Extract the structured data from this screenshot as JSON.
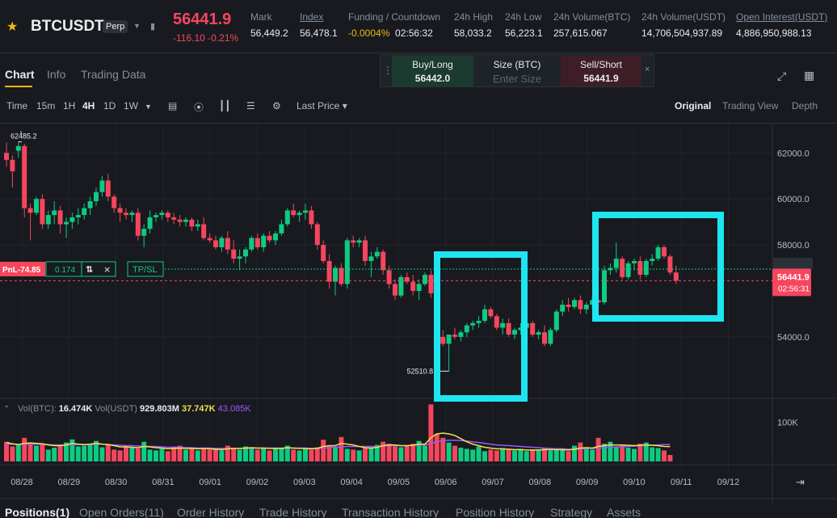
{
  "header": {
    "star_icon": "star-icon",
    "symbol": "BTCUSDT",
    "contract_badge": "Perp",
    "last_price": "56441.9",
    "change": "-116.10",
    "change_pct": "-0.21%",
    "stats": [
      {
        "label": "Mark",
        "value": "56,449.2",
        "underline": false
      },
      {
        "label": "Index",
        "value": "56,478.1",
        "underline": true
      },
      {
        "label": "Funding / Countdown",
        "value_neg": "-0.0004%",
        "value": "02:56:32",
        "underline": false
      },
      {
        "label": "24h High",
        "value": "58,033.2",
        "underline": false
      },
      {
        "label": "24h Low",
        "value": "56,223.1",
        "underline": false
      },
      {
        "label": "24h Volume(BTC)",
        "value": "257,615.067",
        "underline": false
      },
      {
        "label": "24h Volume(USDT)",
        "value": "14,706,504,937.89",
        "underline": false
      },
      {
        "label": "Open Interest(USDT)",
        "value": "4,886,950,988.13",
        "underline": true
      }
    ]
  },
  "tabs": [
    "Chart",
    "Info",
    "Trading Data"
  ],
  "quick_order": {
    "buy_label": "Buy/Long",
    "buy_price": "56442.0",
    "size_label": "Size (BTC)",
    "size_placeholder": "Enter Size",
    "sell_label": "Sell/Short",
    "sell_price": "56441.9",
    "close_glyph": "×"
  },
  "toolbar": {
    "time_label": "Time",
    "intervals": [
      "15m",
      "1H",
      "4H",
      "1D",
      "1W"
    ],
    "active_interval": "4H",
    "price_source": "Last Price",
    "views": [
      "Original",
      "Trading View",
      "Depth"
    ],
    "active_view": "Original"
  },
  "chart_data": {
    "type": "candlestick",
    "ylim": [
      51500,
      63100
    ],
    "y_ticks": [
      "62000.0",
      "60000.0",
      "58000.0",
      "54000.0"
    ],
    "y_tick_values": [
      62000,
      60000,
      58000,
      54000
    ],
    "x_ticks": [
      "08/28",
      "08/29",
      "08/30",
      "08/31",
      "09/01",
      "09/02",
      "09/03",
      "09/04",
      "09/05",
      "09/06",
      "09/07",
      "09/08",
      "09/09",
      "09/10",
      "09/11",
      "09/12"
    ],
    "high_marker": "62485.2",
    "low_marker": "52510.8",
    "current_price_tag": "56441.9",
    "countdown_tag": "02:56:31",
    "position": {
      "pnl": "PnL-74.85",
      "qty": "0.174",
      "tpsl": "TP/SL",
      "close_glyph": "×"
    },
    "colors": {
      "up": "#0ecb81",
      "down": "#f6465d",
      "ma1": "#f0e14a",
      "ma2": "#9b59ff",
      "highlight": "#1ee6f0"
    },
    "candles": [
      [
        62000,
        62450,
        61400,
        61700
      ],
      [
        61700,
        61900,
        60500,
        61200
      ],
      [
        62100,
        62485,
        61800,
        62300
      ],
      [
        62300,
        62400,
        59200,
        59600
      ],
      [
        59600,
        59800,
        58200,
        59400
      ],
      [
        59400,
        60100,
        59300,
        60000
      ],
      [
        60000,
        60200,
        58700,
        58900
      ],
      [
        58900,
        59500,
        58700,
        59300
      ],
      [
        59300,
        59900,
        58900,
        59500
      ],
      [
        59500,
        59700,
        58500,
        58900
      ],
      [
        58900,
        59200,
        58300,
        59000
      ],
      [
        59000,
        59400,
        58700,
        59200
      ],
      [
        59200,
        59600,
        58900,
        59300
      ],
      [
        59300,
        59800,
        59100,
        59600
      ],
      [
        59600,
        60100,
        59300,
        59900
      ],
      [
        59900,
        60500,
        59700,
        60300
      ],
      [
        60300,
        61000,
        60100,
        60800
      ],
      [
        60800,
        61100,
        59900,
        60100
      ],
      [
        60100,
        60200,
        59400,
        59600
      ],
      [
        59600,
        59800,
        59000,
        59400
      ],
      [
        59400,
        59600,
        59100,
        59300
      ],
      [
        59300,
        59500,
        59000,
        59400
      ],
      [
        59400,
        59600,
        58200,
        58400
      ],
      [
        58400,
        58900,
        57900,
        58700
      ],
      [
        58700,
        59500,
        58500,
        59200
      ],
      [
        59200,
        59400,
        59000,
        59300
      ],
      [
        59300,
        59500,
        59100,
        59400
      ],
      [
        59400,
        59500,
        59000,
        59200
      ],
      [
        59200,
        59400,
        58900,
        59100
      ],
      [
        59100,
        59300,
        58800,
        59000
      ],
      [
        59000,
        59200,
        58800,
        59100
      ],
      [
        59100,
        59200,
        58600,
        58800
      ],
      [
        58800,
        59100,
        58600,
        58900
      ],
      [
        58900,
        59200,
        58200,
        58300
      ],
      [
        58300,
        58500,
        58100,
        58200
      ],
      [
        58200,
        58400,
        57800,
        57900
      ],
      [
        57900,
        58400,
        57700,
        58300
      ],
      [
        58300,
        58600,
        57600,
        57800
      ],
      [
        57800,
        58200,
        57200,
        57400
      ],
      [
        57400,
        57800,
        56900,
        57500
      ],
      [
        57500,
        57900,
        57200,
        57800
      ],
      [
        57800,
        58400,
        57700,
        58300
      ],
      [
        58300,
        58500,
        57800,
        57900
      ],
      [
        57900,
        58500,
        57700,
        58400
      ],
      [
        58400,
        58600,
        58100,
        58200
      ],
      [
        58200,
        58600,
        58000,
        58500
      ],
      [
        58500,
        59100,
        58400,
        58900
      ],
      [
        58900,
        59600,
        58800,
        59500
      ],
      [
        59500,
        59800,
        59200,
        59300
      ],
      [
        59300,
        59500,
        59000,
        59400
      ],
      [
        59400,
        59800,
        59100,
        59500
      ],
      [
        59500,
        59700,
        58700,
        58900
      ],
      [
        58900,
        59000,
        57800,
        58000
      ],
      [
        58000,
        58200,
        57200,
        57300
      ],
      [
        57300,
        57600,
        56100,
        56400
      ],
      [
        56400,
        57100,
        55800,
        57000
      ],
      [
        57000,
        57200,
        56200,
        56300
      ],
      [
        56300,
        58300,
        56100,
        58200
      ],
      [
        58200,
        58400,
        57900,
        58100
      ],
      [
        58100,
        58300,
        57900,
        58200
      ],
      [
        58200,
        58400,
        57100,
        57300
      ],
      [
        57300,
        57700,
        56600,
        57500
      ],
      [
        57500,
        57900,
        57400,
        57700
      ],
      [
        57700,
        57800,
        56700,
        56900
      ],
      [
        56900,
        57100,
        56100,
        56300
      ],
      [
        56300,
        56500,
        55600,
        55800
      ],
      [
        55800,
        56700,
        55700,
        56600
      ],
      [
        56600,
        56800,
        56300,
        56400
      ],
      [
        56400,
        56700,
        55800,
        56000
      ],
      [
        56000,
        56500,
        55600,
        56300
      ],
      [
        56300,
        56800,
        56200,
        56700
      ],
      [
        56700,
        56900,
        55700,
        55900
      ],
      [
        55900,
        56000,
        53700,
        54000
      ],
      [
        54000,
        54300,
        53600,
        53700
      ],
      [
        53700,
        54000,
        52510,
        54100
      ],
      [
        54100,
        54400,
        53900,
        54000
      ],
      [
        54000,
        54300,
        53800,
        54200
      ],
      [
        54200,
        54600,
        54000,
        54500
      ],
      [
        54500,
        54700,
        54300,
        54600
      ],
      [
        54600,
        54900,
        54400,
        54700
      ],
      [
        54700,
        55400,
        54600,
        55200
      ],
      [
        55200,
        55300,
        54800,
        54900
      ],
      [
        54900,
        55000,
        54300,
        54400
      ],
      [
        54400,
        54800,
        54100,
        54600
      ],
      [
        54600,
        54800,
        54000,
        54100
      ],
      [
        54100,
        54400,
        53900,
        54300
      ],
      [
        54300,
        54600,
        54100,
        54400
      ],
      [
        54400,
        54800,
        54200,
        54600
      ],
      [
        54600,
        54700,
        54000,
        54100
      ],
      [
        54100,
        54300,
        53900,
        54200
      ],
      [
        54200,
        54500,
        53600,
        53700
      ],
      [
        53700,
        54400,
        53600,
        54300
      ],
      [
        54300,
        55200,
        54200,
        55100
      ],
      [
        55100,
        55600,
        54900,
        55400
      ],
      [
        55400,
        55700,
        55100,
        55300
      ],
      [
        55300,
        55700,
        55200,
        55600
      ],
      [
        55600,
        55800,
        55000,
        55200
      ],
      [
        55200,
        55500,
        55000,
        55400
      ],
      [
        55400,
        55800,
        55200,
        55600
      ],
      [
        55600,
        55900,
        55300,
        55500
      ],
      [
        55500,
        57100,
        55400,
        56900
      ],
      [
        56900,
        57200,
        56700,
        57000
      ],
      [
        57000,
        58100,
        56800,
        57400
      ],
      [
        57400,
        57500,
        56500,
        56600
      ],
      [
        56600,
        57300,
        56500,
        57200
      ],
      [
        57200,
        57400,
        56900,
        57300
      ],
      [
        57300,
        57500,
        56500,
        56700
      ],
      [
        56700,
        57400,
        56600,
        57300
      ],
      [
        57300,
        57600,
        57100,
        57400
      ],
      [
        57400,
        58000,
        57300,
        57900
      ],
      [
        57900,
        58000,
        57400,
        57500
      ],
      [
        57500,
        57600,
        56700,
        56800
      ],
      [
        56800,
        57100,
        56300,
        56442
      ]
    ],
    "volume": {
      "label": "Vol(BTC):",
      "btc_value": "16.474K",
      "usdt_label": "Vol(USDT)",
      "usdt_value": "929.803M",
      "ma1_value": "37.747K",
      "ma2_value": "43.085K",
      "y_tick": "100K",
      "y_tick_value": 100000,
      "ylim": [
        0,
        150000
      ],
      "bars": [
        50000,
        38000,
        42000,
        60000,
        48000,
        40000,
        45000,
        30000,
        35000,
        42000,
        48000,
        56000,
        38000,
        40000,
        44000,
        52000,
        36000,
        42000,
        30000,
        28000,
        40000,
        35000,
        33000,
        50000,
        30000,
        28000,
        32000,
        26000,
        38000,
        40000,
        30000,
        33000,
        28000,
        35000,
        30000,
        30000,
        28000,
        40000,
        34000,
        30000,
        38000,
        36000,
        30000,
        34000,
        28000,
        32000,
        35000,
        40000,
        30000,
        28000,
        32000,
        30000,
        36000,
        55000,
        40000,
        38000,
        62000,
        32000,
        30000,
        28000,
        34000,
        36000,
        42000,
        50000,
        45000,
        38000,
        36000,
        40000,
        45000,
        52000,
        40000,
        145000,
        70000,
        60000,
        48000,
        40000,
        35000,
        32000,
        30000,
        38000,
        26000,
        30000,
        28000,
        34000,
        30000,
        28000,
        32000,
        26000,
        30000,
        28000,
        34000,
        28000,
        30000,
        32000,
        26000,
        40000,
        48000,
        36000,
        30000,
        60000,
        45000,
        50000,
        38000,
        40000,
        35000,
        32000,
        45000,
        48000,
        36000,
        34000,
        28000,
        16474
      ],
      "ma1": [
        48000,
        45000,
        43000,
        46000,
        47000,
        46000,
        45000,
        42000,
        40000,
        40000,
        42000,
        46000,
        44000,
        43000,
        44000,
        46000,
        44000,
        43000,
        40000,
        37000,
        37000,
        36000,
        35000,
        38000,
        37000,
        35000,
        34000,
        32000,
        33000,
        34000,
        33000,
        33000,
        32000,
        33000,
        32000,
        31000,
        30000,
        32000,
        33000,
        33000,
        34000,
        35000,
        34000,
        34000,
        33000,
        33000,
        33000,
        35000,
        34000,
        33000,
        33000,
        32000,
        33000,
        38000,
        40000,
        40000,
        46000,
        44000,
        42000,
        38000,
        35000,
        34000,
        36000,
        40000,
        42000,
        42000,
        40000,
        40000,
        41000,
        44000,
        44000,
        60000,
        70000,
        72000,
        70000,
        66000,
        58000,
        50000,
        44000,
        40000,
        36000,
        34000,
        32000,
        32000,
        31000,
        30000,
        30000,
        29000,
        29000,
        29000,
        30000,
        30000,
        30000,
        30000,
        29000,
        31000,
        34000,
        35000,
        34000,
        38000,
        40000,
        42000,
        42000,
        42000,
        41000,
        40000,
        41000,
        42000,
        41000,
        40000,
        38000,
        37747
      ],
      "ma2": [
        44000,
        44000,
        43000,
        44000,
        44000,
        44000,
        44000,
        43000,
        42000,
        42000,
        42000,
        43000,
        43000,
        43000,
        43000,
        44000,
        44000,
        43000,
        42000,
        41000,
        40000,
        40000,
        39000,
        39000,
        38000,
        38000,
        37000,
        36000,
        36000,
        36000,
        35000,
        35000,
        34000,
        34000,
        34000,
        33000,
        33000,
        33000,
        33000,
        33000,
        33000,
        34000,
        34000,
        34000,
        34000,
        34000,
        34000,
        34000,
        34000,
        34000,
        34000,
        33000,
        33000,
        34000,
        35000,
        36000,
        37000,
        38000,
        38000,
        38000,
        38000,
        38000,
        38000,
        39000,
        40000,
        40000,
        40000,
        40000,
        41000,
        42000,
        42000,
        46000,
        50000,
        53000,
        54000,
        54000,
        53000,
        52000,
        50000,
        48000,
        46000,
        44000,
        42000,
        41000,
        40000,
        39000,
        38000,
        37000,
        36000,
        35000,
        34000,
        33000,
        32000,
        32000,
        31000,
        31000,
        32000,
        33000,
        33000,
        34000,
        35000,
        36000,
        37000,
        38000,
        38000,
        39000,
        40000,
        41000,
        41000,
        42000,
        43000,
        43085
      ]
    }
  },
  "bottom_tabs": [
    "Positions(1)",
    "Open Orders(11)",
    "Order History",
    "Trade History",
    "Transaction History",
    "Position History",
    "Strategy",
    "Assets"
  ]
}
